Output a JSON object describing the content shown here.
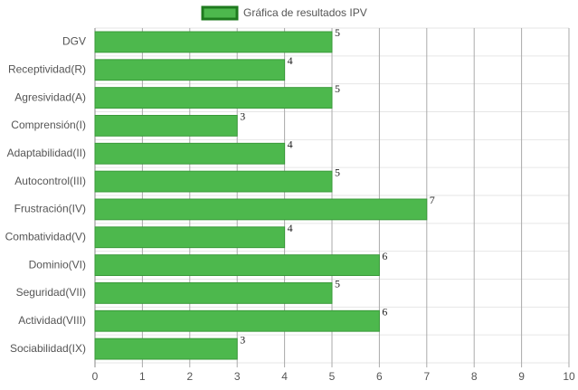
{
  "chart_data": {
    "type": "bar",
    "orientation": "horizontal",
    "categories": [
      "DGV",
      "Receptividad(R)",
      "Agresividad(A)",
      "Comprensión(I)",
      "Adaptabilidad(II)",
      "Autocontrol(III)",
      "Frustración(IV)",
      "Combatividad(V)",
      "Dominio(VI)",
      "Seguridad(VII)",
      "Actividad(VIII)",
      "Sociabilidad(IX)"
    ],
    "series": [
      {
        "name": "Gráfica de resultados IPV",
        "color": "#4db84d",
        "values": [
          5,
          4,
          5,
          3,
          4,
          5,
          7,
          4,
          6,
          5,
          6,
          3
        ]
      }
    ],
    "xlim": [
      0,
      10
    ],
    "xticks": [
      0,
      1,
      2,
      3,
      4,
      5,
      6,
      7,
      8,
      9,
      10
    ],
    "grid": true,
    "legend": "top"
  }
}
